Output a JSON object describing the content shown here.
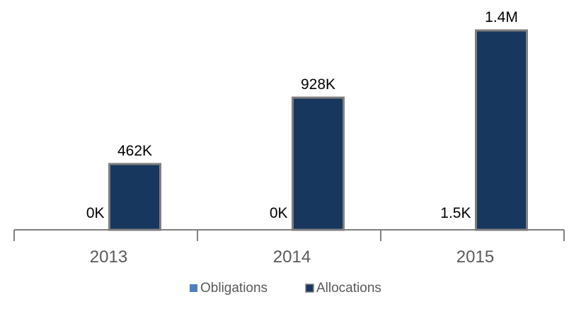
{
  "chart_data": {
    "type": "bar",
    "categories": [
      "2013",
      "2014",
      "2015"
    ],
    "series": [
      {
        "name": "Obligations",
        "values": [
          0,
          0,
          1500
        ],
        "labels": [
          "0K",
          "0K",
          "1.5K"
        ],
        "color": "#4f81bd"
      },
      {
        "name": "Allocations",
        "values": [
          462000,
          928000,
          1400000
        ],
        "labels": [
          "462K",
          "928K",
          "1.4M"
        ],
        "color": "#17375e",
        "border_color": "#7f7f7f"
      }
    ],
    "ylim": [
      0,
      1400000
    ],
    "grid": false,
    "legend_position": "bottom",
    "axis_color": "#7f7f7f"
  }
}
